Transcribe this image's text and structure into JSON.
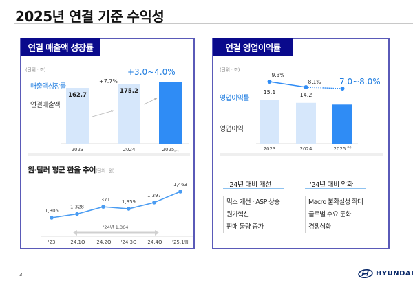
{
  "page": {
    "title": "2025년 연결 기준 수익성",
    "page_number": "3",
    "brand": "HYUNDAI",
    "colors": {
      "header_bg": "#0a0a8c",
      "panel_border": "#5a5ab8",
      "bar_light": "#d6e7fb",
      "bar_accent": "#2f8cf5",
      "accent_text": "#1f7de0",
      "line_blue": "#2f8cf5",
      "fx_line": "#4a9cf2"
    }
  },
  "left_panel": {
    "header": "연결 매출액 성장률",
    "unit": "(단위 : 조)",
    "label_growth": "매출액성장률",
    "label_sales": "연결매출액",
    "growth_23_24": "+7.7%",
    "growth_forecast": "+3.0~4.0%",
    "fx_title": "원·달러 평균 환율 추이",
    "fx_unit": "(단위 : 원)",
    "fx_annual_note": "'24년 1,364"
  },
  "right_panel": {
    "header": "연결 영업이익률",
    "unit": "(단위 : 조)",
    "label_margin": "영업이익률",
    "label_profit": "영업이익",
    "margin_forecast": "7.0~8.0%",
    "improve_head": "'24년 대비 개선",
    "worsen_head": "'24년 대비 악화",
    "improve_items": [
      "믹스 개선 · ASP 상승",
      "원가혁신",
      "판매 물량 증가"
    ],
    "worsen_items": [
      "Macro 불확실성 확대",
      "글로벌 수요 둔화",
      "경쟁심화"
    ]
  },
  "chart_data": [
    {
      "type": "bar",
      "title": "연결 매출액 성장률",
      "ylabel": "연결매출액 (조)",
      "categories": [
        "2023",
        "2024",
        "2025(F)"
      ],
      "values": [
        162.7,
        175.2,
        null
      ],
      "value_labels": [
        "162.7",
        "175.2",
        ""
      ],
      "forecast_growth_range_pct": [
        3.0,
        4.0
      ],
      "annotations": [
        "+7.7%",
        "+3.0~4.0%"
      ],
      "relative_heights": [
        0.81,
        0.87,
        0.9
      ]
    },
    {
      "type": "bar",
      "title": "연결 영업이익률",
      "ylabel": "영업이익 (조)",
      "categories": [
        "2023",
        "2024",
        "2025(F)"
      ],
      "values": [
        15.1,
        14.2,
        null
      ],
      "value_labels": [
        "15.1",
        "14.2",
        ""
      ],
      "relative_heights": [
        1.0,
        0.94,
        0.9
      ],
      "line_series": {
        "name": "영업이익률",
        "values": [
          9.3,
          8.1,
          7.5
        ],
        "labels": [
          "9.3%",
          "8.1%",
          "7.0~8.0%"
        ],
        "forecast_dashed": true
      }
    },
    {
      "type": "line",
      "title": "원·달러 평균 환율 추이",
      "ylabel": "원",
      "x": [
        "'23",
        "'24.1Q",
        "'24.2Q",
        "'24.3Q",
        "'24.4Q",
        "'25.1월"
      ],
      "values": [
        1305,
        1328,
        1371,
        1359,
        1397,
        1463
      ],
      "value_labels": [
        "1,305",
        "1,328",
        "1,371",
        "1,359",
        "1,397",
        "1,463"
      ],
      "annotation": "'24년 1,364"
    }
  ]
}
